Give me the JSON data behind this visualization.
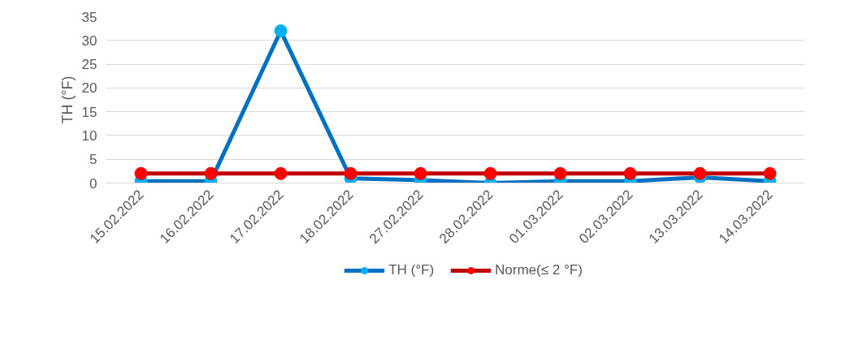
{
  "chart_data": {
    "type": "line",
    "ylabel": "TH (°F)",
    "categories": [
      "15.02.2022",
      "16.02.2022",
      "17.02.2022",
      "18.02.2022",
      "27.02.2022",
      "28.02.2022",
      "01.03.2022",
      "02.03.2022",
      "13.03.2022",
      "14.03.2022"
    ],
    "series": [
      {
        "name": "TH (°F)",
        "color": "#0070c0",
        "colors": [
          "#00b0f0",
          "#00b0f0",
          "#00b0f0",
          "#00b0f0",
          "#00b0f0",
          "#00b0f0",
          "#00b0f0",
          "#00b0f0",
          "#00b0f0",
          "#00b0f0"
        ],
        "values": [
          0.4,
          0.4,
          32,
          1,
          0.6,
          0,
          0.4,
          0.4,
          1.2,
          0.4
        ]
      },
      {
        "name": "Norme(≤ 2 °F)",
        "color": "#c00000",
        "colors": [
          "#ff0000",
          "#ff0000",
          "#ff0000",
          "#ff0000",
          "#ff0000",
          "#ff0000",
          "#ff0000",
          "#ff0000",
          "#ff0000",
          "#ff0000"
        ],
        "values": [
          2,
          2,
          2,
          2,
          2,
          2,
          2,
          2,
          2,
          2
        ]
      }
    ],
    "ylim": [
      0,
      35
    ],
    "yticks": [
      0,
      5,
      10,
      15,
      20,
      25,
      30,
      35
    ],
    "grid": "y",
    "legend": "bottom",
    "marker": "circle",
    "line_style": "solid"
  }
}
